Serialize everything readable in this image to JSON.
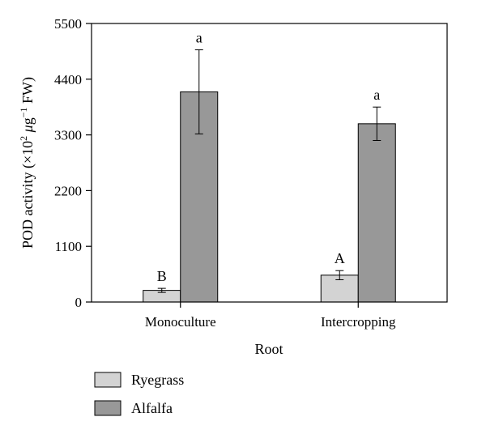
{
  "chart_data": {
    "type": "bar",
    "title": "",
    "xlabel": "Root",
    "ylabel": {
      "main": "POD activity (×10",
      "exp1": "2",
      "mu": " μ",
      "unit": "g",
      "exp2": "−1",
      "tail": " FW)"
    },
    "categories": [
      "Monoculture",
      "Intercropping"
    ],
    "ylim": [
      0,
      5500
    ],
    "yticks": [
      0,
      1100,
      2200,
      3300,
      4400,
      5500
    ],
    "ytick_labels": [
      "0",
      "1100",
      "2200",
      "3300",
      "4400",
      "5500"
    ],
    "grid": false,
    "legend_position": "bottom-left",
    "series": [
      {
        "name": "Ryegrass",
        "color": "#d3d3d3",
        "values": [
          230,
          530
        ],
        "errors": [
          40,
          90
        ],
        "significance": [
          "B",
          "A"
        ]
      },
      {
        "name": "Alfalfa",
        "color": "#989898",
        "values": [
          4150,
          3520
        ],
        "errors": [
          830,
          330
        ],
        "significance": [
          "a",
          "a"
        ]
      }
    ]
  }
}
